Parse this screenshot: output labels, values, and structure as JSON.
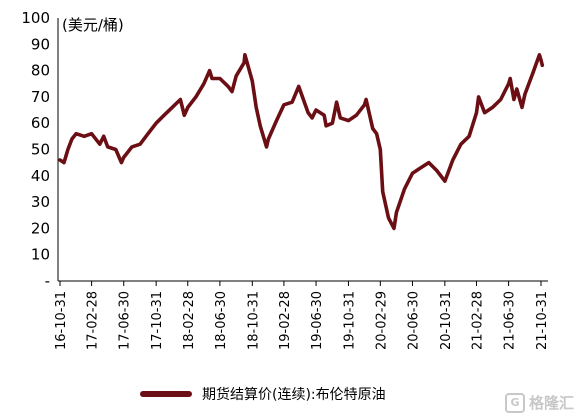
{
  "chart_data": {
    "type": "line",
    "unit_label": "(美元/桶)",
    "ylim": [
      0,
      100
    ],
    "yticks": [
      "-",
      "10",
      "20",
      "30",
      "40",
      "50",
      "60",
      "70",
      "80",
      "90",
      "100"
    ],
    "xticks": [
      "16-10-31",
      "17-02-28",
      "17-06-30",
      "17-10-31",
      "18-02-28",
      "18-06-30",
      "18-10-31",
      "19-02-28",
      "19-06-30",
      "19-10-31",
      "20-02-29",
      "20-06-30",
      "20-10-31",
      "21-02-28",
      "21-06-30",
      "21-10-31"
    ],
    "grid": false,
    "legend_position": "bottom",
    "series": [
      {
        "name": "期货结算价(连续):布伦特原油",
        "color": "#6b0f14",
        "x": [
          "2016-10-31",
          "2016-11-15",
          "2016-11-30",
          "2016-12-15",
          "2016-12-31",
          "2017-01-31",
          "2017-02-28",
          "2017-03-31",
          "2017-04-15",
          "2017-04-30",
          "2017-05-31",
          "2017-06-21",
          "2017-06-30",
          "2017-07-31",
          "2017-08-31",
          "2017-09-30",
          "2017-10-31",
          "2017-11-30",
          "2017-12-31",
          "2018-01-31",
          "2018-02-15",
          "2018-02-28",
          "2018-03-31",
          "2018-04-30",
          "2018-05-22",
          "2018-05-31",
          "2018-06-30",
          "2018-07-31",
          "2018-08-15",
          "2018-08-31",
          "2018-09-30",
          "2018-10-03",
          "2018-10-31",
          "2018-11-15",
          "2018-11-30",
          "2018-12-24",
          "2018-12-31",
          "2019-01-31",
          "2019-02-28",
          "2019-03-31",
          "2019-04-25",
          "2019-05-31",
          "2019-06-15",
          "2019-06-30",
          "2019-07-31",
          "2019-08-07",
          "2019-08-31",
          "2019-09-16",
          "2019-09-30",
          "2019-10-31",
          "2019-11-30",
          "2019-12-31",
          "2020-01-06",
          "2020-01-31",
          "2020-02-15",
          "2020-02-29",
          "2020-03-09",
          "2020-03-31",
          "2020-04-21",
          "2020-04-30",
          "2020-05-31",
          "2020-06-30",
          "2020-07-31",
          "2020-08-31",
          "2020-09-30",
          "2020-10-31",
          "2020-11-30",
          "2020-12-31",
          "2021-01-31",
          "2021-02-28",
          "2021-03-08",
          "2021-03-31",
          "2021-04-30",
          "2021-05-31",
          "2021-06-30",
          "2021-07-06",
          "2021-07-20",
          "2021-07-31",
          "2021-08-20",
          "2021-08-31",
          "2021-09-30",
          "2021-10-25",
          "2021-10-31",
          "2021-11-05"
        ],
        "y": [
          46,
          45,
          50,
          54,
          56,
          55,
          56,
          52,
          55,
          51,
          50,
          45,
          47,
          51,
          52,
          56,
          60,
          63,
          66,
          69,
          63,
          66,
          70,
          75,
          80,
          77,
          77,
          74,
          72,
          78,
          83,
          86,
          76,
          66,
          59,
          51,
          54,
          61,
          67,
          68,
          74,
          64,
          62,
          65,
          63,
          59,
          60,
          68,
          62,
          61,
          63,
          67,
          69,
          58,
          56,
          50,
          34,
          24,
          20,
          26,
          35,
          41,
          43,
          45,
          42,
          38,
          46,
          52,
          55,
          64,
          70,
          64,
          66,
          69,
          75,
          77,
          69,
          73,
          66,
          71,
          79,
          86,
          84,
          82
        ]
      }
    ]
  },
  "watermark": {
    "logo_glyph": "G",
    "text": "格隆汇"
  }
}
